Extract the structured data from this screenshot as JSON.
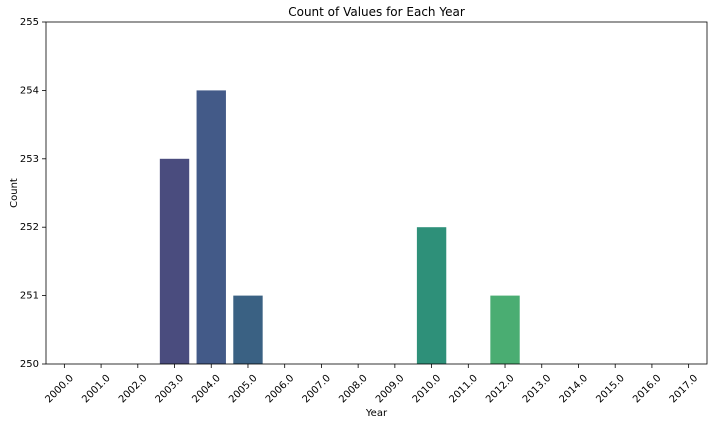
{
  "chart_data": {
    "type": "bar",
    "title": "Count of Values for Each Year",
    "xlabel": "Year",
    "ylabel": "Count",
    "categories": [
      "2000.0",
      "2001.0",
      "2002.0",
      "2003.0",
      "2004.0",
      "2005.0",
      "2006.0",
      "2007.0",
      "2008.0",
      "2009.0",
      "2010.0",
      "2011.0",
      "2012.0",
      "2013.0",
      "2014.0",
      "2015.0",
      "2016.0",
      "2017.0"
    ],
    "values": [
      250,
      250,
      250,
      253,
      254,
      251,
      250,
      250,
      250,
      250,
      252,
      250,
      251,
      250,
      250,
      250,
      250,
      250
    ],
    "ylim": [
      250,
      255
    ],
    "yticks": [
      "250",
      "251",
      "252",
      "253",
      "254",
      "255"
    ],
    "colors": [
      "#440154",
      "#46327e",
      "#462d7b",
      "#4a4c7e",
      "#435a88",
      "#3a6183",
      "#32708e",
      "#2c7f8e",
      "#24878d",
      "#1fa187",
      "#2e9079",
      "#2ea679",
      "#4aad72",
      "#6ccd5a",
      "#8fd744",
      "#b2dd2c",
      "#d8e219",
      "#fde725"
    ],
    "grid": false,
    "legend": "none"
  }
}
